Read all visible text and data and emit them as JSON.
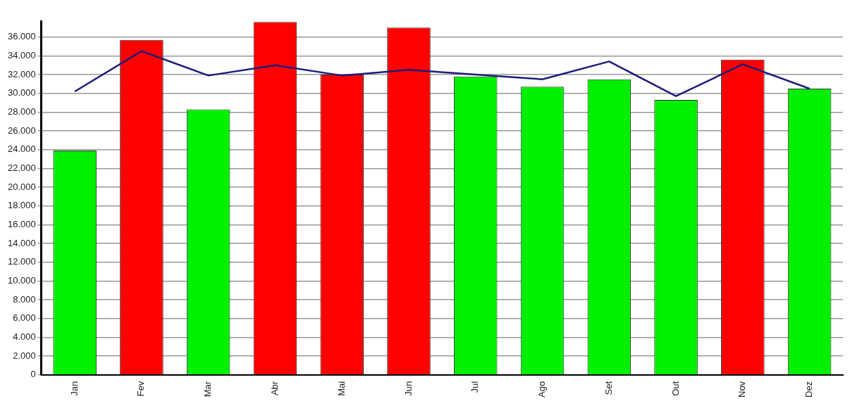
{
  "chart_data": {
    "type": "bar",
    "categories": [
      "Jan",
      "Fev",
      "Mar",
      "Abr",
      "Mai",
      "Jun",
      "Jul",
      "Ago",
      "Set",
      "Out",
      "Nov",
      "Dez"
    ],
    "series": [
      {
        "colors": [
          "#00f000",
          "#ff0000",
          "#00f000",
          "#ff0000",
          "#ff0000",
          "#ff0000",
          "#00f000",
          "#00f000",
          "#00f000",
          "#00f000",
          "#ff0000",
          "#00f000"
        ],
        "values": [
          23900,
          35700,
          28300,
          37600,
          32000,
          37000,
          31800,
          30700,
          31500,
          29300,
          33600,
          30500
        ]
      },
      {
        "type": "line",
        "color": "#1c1c7a",
        "values": [
          30200,
          34500,
          31900,
          33000,
          31900,
          32500,
          32000,
          31500,
          33400,
          29700,
          33100,
          30500
        ]
      }
    ],
    "ylim": [
      0,
      37700
    ],
    "yticks": [
      {
        "value": 0,
        "label": "0"
      },
      {
        "value": 2000,
        "label": "2.000"
      },
      {
        "value": 4000,
        "label": "4.000"
      },
      {
        "value": 6000,
        "label": "6.000"
      },
      {
        "value": 8000,
        "label": "8.000"
      },
      {
        "value": 10000,
        "label": "10.000"
      },
      {
        "value": 12000,
        "label": "12.000"
      },
      {
        "value": 14000,
        "label": "14.000"
      },
      {
        "value": 16000,
        "label": "16.000"
      },
      {
        "value": 18000,
        "label": "18.000"
      },
      {
        "value": 20000,
        "label": "20.000"
      },
      {
        "value": 22000,
        "label": "22.000"
      },
      {
        "value": 24000,
        "label": "24.000"
      },
      {
        "value": 26000,
        "label": "26.000"
      },
      {
        "value": 28000,
        "label": "28.000"
      },
      {
        "value": 30000,
        "label": "30.000"
      },
      {
        "value": 32000,
        "label": "32.000"
      },
      {
        "value": 34000,
        "label": "34.000"
      },
      {
        "value": 36000,
        "label": "36.000"
      }
    ],
    "grid": "y",
    "legend": false,
    "marker": "none",
    "line_style": "solid"
  }
}
